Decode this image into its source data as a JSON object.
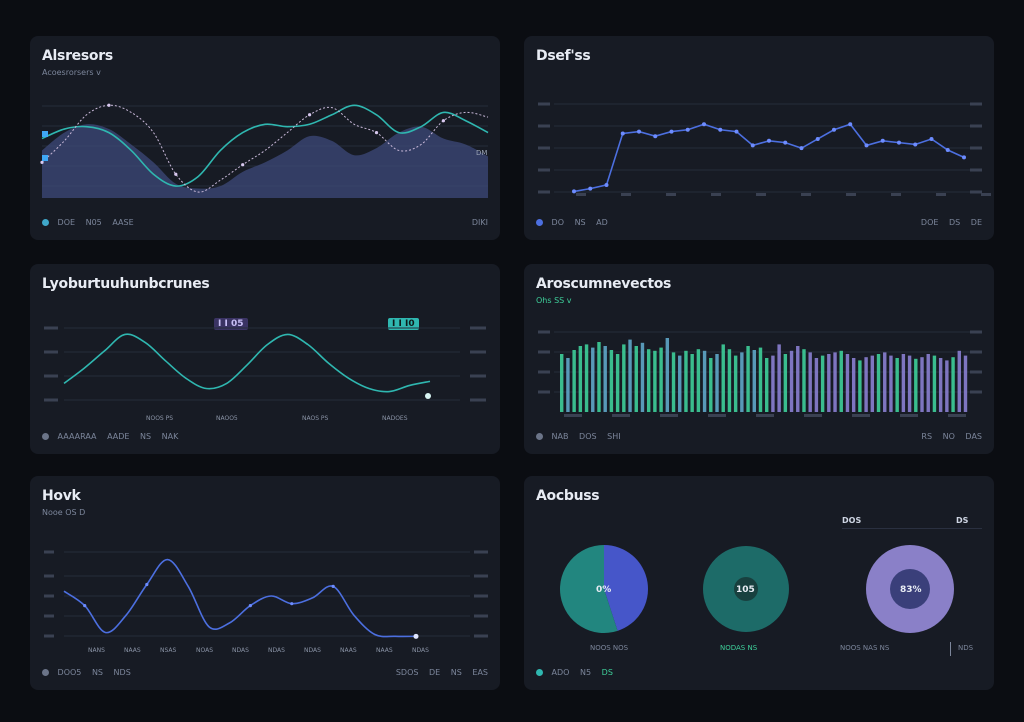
{
  "colors": {
    "bg": "#0b0d12",
    "card": "#171b24",
    "teal": "#2fb7b0",
    "blue": "#4c6fe0",
    "purple": "#8a7fd1",
    "green": "#3ecf9a"
  },
  "cards": {
    "area": {
      "title": "Alsresors",
      "subtitle": "Acoesrorsers v",
      "footer": {
        "left": [
          "DOE",
          "N05",
          "AASE"
        ],
        "right": "DIKI"
      },
      "label_mid": "DM"
    },
    "line_top_right": {
      "title": "Dsef'ss",
      "footer": {
        "left": [
          "DO",
          "NS",
          "AD"
        ],
        "right": [
          "DOE",
          "DS",
          "DE"
        ]
      }
    },
    "wave": {
      "title": "Lyoburtuuhunbcrunes",
      "badge_left": "I I 05",
      "badge_right": "I I I0",
      "footer": {
        "left": [
          "AAAARAA",
          "AADE",
          "NS",
          "NAK"
        ]
      },
      "x_labels": [
        "NOOS PS",
        "NAOO5",
        "NAOS PS",
        "NADOES"
      ]
    },
    "bars": {
      "title": "Aroscumnevectos",
      "subtitle": "Ohs  SS  v",
      "footer": {
        "left": [
          "NAB",
          "DOS",
          "SHI"
        ],
        "right": [
          "RS",
          "NO",
          "DAS"
        ]
      }
    },
    "line_bottom": {
      "title": "Hovk",
      "subtitle": "Nooe  OS  D",
      "footer": {
        "left": [
          "DOO5",
          "NS",
          "NDS"
        ],
        "right": [
          "SDOS",
          "DE",
          "NS",
          "EAS"
        ]
      },
      "x_labels": [
        "NANS",
        "NAAS",
        "NSAS",
        "NOAS",
        "NDAS",
        "NDAS",
        "NDAS",
        "NAAS",
        "NAAS",
        "NDAS"
      ]
    },
    "donuts": {
      "title": "Aocbuss",
      "legend_top_left": "DOS",
      "legend_top_right": "DS",
      "donut_labels": [
        "0%",
        "105",
        "83%"
      ],
      "captions": [
        "NOOS NOS",
        "NODAS NS",
        "NOOS NAS NS",
        "NDS"
      ],
      "footer": {
        "left": [
          "ADO",
          "N5",
          "DS"
        ]
      }
    }
  },
  "chart_data": [
    {
      "type": "area",
      "title": "Alsresors",
      "x": [
        0,
        1,
        2,
        3,
        4,
        5,
        6,
        7,
        8,
        9,
        10,
        11,
        12,
        13,
        14,
        15,
        16,
        17,
        18,
        19,
        20
      ],
      "series": [
        {
          "name": "area",
          "values": [
            40,
            55,
            62,
            58,
            45,
            30,
            12,
            8,
            10,
            22,
            30,
            40,
            52,
            48,
            36,
            42,
            55,
            60,
            50,
            45,
            35
          ]
        },
        {
          "name": "teal",
          "values": [
            50,
            58,
            60,
            55,
            40,
            20,
            10,
            18,
            40,
            55,
            62,
            60,
            62,
            70,
            78,
            70,
            55,
            60,
            72,
            65,
            55
          ]
        },
        {
          "name": "dash",
          "values": [
            30,
            48,
            70,
            78,
            72,
            55,
            20,
            5,
            15,
            28,
            40,
            55,
            70,
            76,
            62,
            55,
            40,
            45,
            65,
            72,
            68
          ]
        }
      ],
      "ylim": [
        0,
        90
      ]
    },
    {
      "type": "line",
      "title": "Dsef'ss",
      "values": [
        5,
        8,
        12,
        68,
        70,
        65,
        70,
        72,
        78,
        72,
        70,
        55,
        60,
        58,
        52,
        62,
        72,
        78,
        55,
        60,
        58,
        56,
        62,
        50,
        42
      ],
      "ylim": [
        0,
        100
      ]
    },
    {
      "type": "line",
      "title": "Lyoburtuuhunbcrunes",
      "values": [
        30,
        45,
        62,
        78,
        70,
        52,
        35,
        25,
        30,
        48,
        68,
        78,
        68,
        50,
        35,
        25,
        22,
        28,
        32
      ],
      "ylim": [
        0,
        100
      ]
    },
    {
      "type": "bar",
      "title": "Aroscumnevectos",
      "values": [
        60,
        55,
        65,
        70,
        72,
        68,
        75,
        70,
        65,
        60,
        72,
        78,
        70,
        74,
        66,
        64,
        68,
        80,
        62,
        58,
        64,
        60,
        66,
        64,
        55,
        60,
        72,
        66,
        58,
        62,
        70,
        65,
        68,
        55,
        58,
        72,
        60,
        64,
        70,
        66,
        62,
        55,
        58,
        60,
        62,
        64,
        60,
        55,
        52,
        56,
        58,
        60,
        62,
        58,
        55,
        60,
        58,
        54,
        56,
        60,
        58,
        55,
        52,
        56,
        64,
        58
      ],
      "ylim": [
        0,
        100
      ]
    },
    {
      "type": "line",
      "title": "Hovk",
      "values": [
        55,
        40,
        12,
        30,
        62,
        88,
        60,
        18,
        22,
        40,
        50,
        42,
        48,
        60,
        30,
        10,
        8,
        8
      ],
      "ylim": [
        0,
        100
      ]
    },
    {
      "type": "pie",
      "title": "Aocbuss",
      "series": [
        {
          "name": "donut1",
          "values": [
            45,
            55
          ]
        },
        {
          "name": "donut2",
          "values": [
            100
          ]
        },
        {
          "name": "donut3",
          "values": [
            100
          ]
        }
      ]
    }
  ]
}
